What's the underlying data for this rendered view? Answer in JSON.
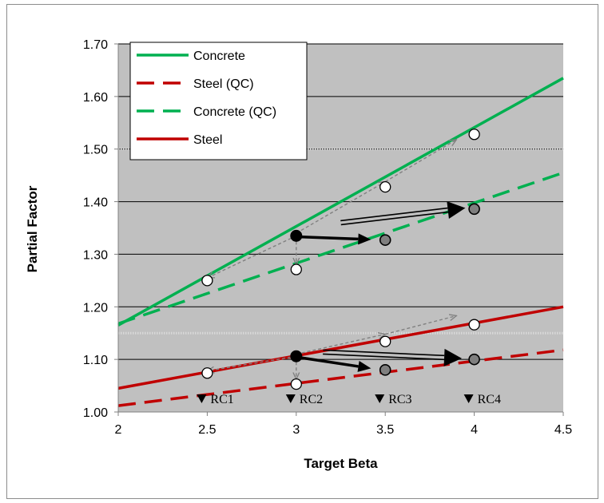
{
  "chart_data": {
    "type": "line",
    "title": "",
    "xlabel": "Target Beta",
    "ylabel": "Partial Factor",
    "xlim": [
      2,
      4.5
    ],
    "ylim": [
      1.0,
      1.7
    ],
    "x_ticks": [
      "2",
      "2.5",
      "3",
      "3.5",
      "4",
      "4.5"
    ],
    "x_tick_values": [
      2,
      2.5,
      3,
      3.5,
      4,
      4.5
    ],
    "y_ticks": [
      "1.00",
      "1.10",
      "1.20",
      "1.30",
      "1.40",
      "1.50",
      "1.60",
      "1.70"
    ],
    "y_tick_values": [
      1.0,
      1.1,
      1.2,
      1.3,
      1.4,
      1.5,
      1.6,
      1.7
    ],
    "grid": true,
    "background": "#c0c0c0",
    "legend_placement": "top-left",
    "series": [
      {
        "name": "Concrete",
        "color": "#00b050",
        "style": "solid",
        "x": [
          2,
          4.5
        ],
        "y": [
          1.165,
          1.635
        ]
      },
      {
        "name": "Steel (QC)",
        "color": "#c00000",
        "style": "dashed",
        "x": [
          2,
          4.5
        ],
        "y": [
          1.012,
          1.118
        ]
      },
      {
        "name": "Concrete (QC)",
        "color": "#00b050",
        "style": "dashed",
        "x": [
          2,
          4.5
        ],
        "y": [
          1.168,
          1.455
        ]
      },
      {
        "name": "Steel",
        "color": "#c00000",
        "style": "solid",
        "x": [
          2,
          4.5
        ],
        "y": [
          1.045,
          1.2
        ]
      }
    ],
    "reference_lines": [
      {
        "y": 1.5,
        "style": "dotted",
        "color": "#d9d9d9"
      },
      {
        "y": 1.15,
        "style": "dotted",
        "color": "#d9d9d9"
      }
    ],
    "points": [
      {
        "x": 2.5,
        "y": 1.25,
        "fill": "open"
      },
      {
        "x": 3.0,
        "y": 1.335,
        "fill": "filled"
      },
      {
        "x": 3.0,
        "y": 1.271,
        "fill": "open"
      },
      {
        "x": 3.5,
        "y": 1.428,
        "fill": "open"
      },
      {
        "x": 3.5,
        "y": 1.327,
        "fill": "grey"
      },
      {
        "x": 4.0,
        "y": 1.528,
        "fill": "open"
      },
      {
        "x": 4.0,
        "y": 1.386,
        "fill": "grey"
      },
      {
        "x": 2.5,
        "y": 1.074,
        "fill": "open"
      },
      {
        "x": 3.0,
        "y": 1.106,
        "fill": "filled"
      },
      {
        "x": 3.0,
        "y": 1.053,
        "fill": "open"
      },
      {
        "x": 3.5,
        "y": 1.134,
        "fill": "open"
      },
      {
        "x": 3.5,
        "y": 1.08,
        "fill": "grey"
      },
      {
        "x": 4.0,
        "y": 1.166,
        "fill": "open"
      },
      {
        "x": 4.0,
        "y": 1.1,
        "fill": "grey"
      }
    ],
    "arrows": [
      {
        "kind": "dashed-grey",
        "from": [
          3.0,
          1.335
        ],
        "to": [
          2.5,
          1.255
        ]
      },
      {
        "kind": "dashed-grey",
        "from": [
          3.0,
          1.335
        ],
        "to": [
          3.0,
          1.28
        ]
      },
      {
        "kind": "dashed-grey",
        "from": [
          3.0,
          1.34
        ],
        "to": [
          3.5,
          1.438
        ]
      },
      {
        "kind": "dashed-grey",
        "from": [
          3.5,
          1.438
        ],
        "to": [
          3.9,
          1.518
        ]
      },
      {
        "kind": "solid-black",
        "from": [
          3.03,
          1.333
        ],
        "to": [
          3.42,
          1.328
        ]
      },
      {
        "kind": "double-black",
        "from": [
          3.25,
          1.36
        ],
        "to": [
          3.95,
          1.388
        ]
      },
      {
        "kind": "dashed-grey",
        "from": [
          3.0,
          1.106
        ],
        "to": [
          2.5,
          1.078
        ]
      },
      {
        "kind": "dashed-grey",
        "from": [
          3.0,
          1.106
        ],
        "to": [
          3.0,
          1.062
        ]
      },
      {
        "kind": "dashed-grey",
        "from": [
          3.0,
          1.11
        ],
        "to": [
          3.5,
          1.148
        ]
      },
      {
        "kind": "dashed-grey",
        "from": [
          3.5,
          1.148
        ],
        "to": [
          3.9,
          1.183
        ]
      },
      {
        "kind": "solid-black",
        "from": [
          3.03,
          1.103
        ],
        "to": [
          3.42,
          1.083
        ]
      },
      {
        "kind": "double-black",
        "from": [
          3.15,
          1.114
        ],
        "to": [
          3.93,
          1.102
        ]
      }
    ],
    "annotations": [
      {
        "text": "RC1",
        "x": 2.5
      },
      {
        "text": "RC2",
        "x": 3.0
      },
      {
        "text": "RC3",
        "x": 3.5
      },
      {
        "text": "RC4",
        "x": 4.0
      }
    ]
  }
}
